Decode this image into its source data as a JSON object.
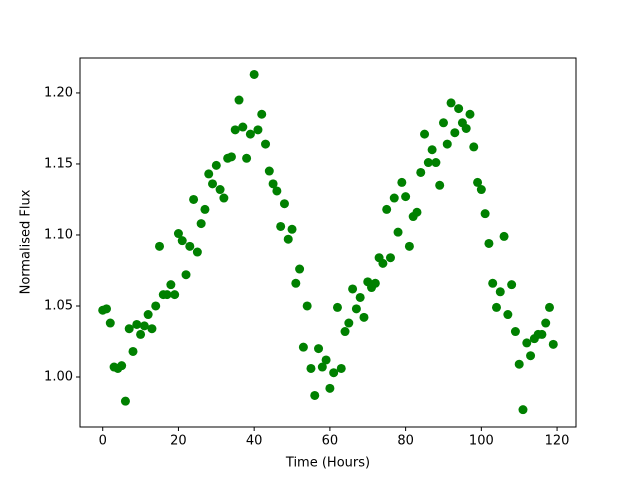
{
  "chart_data": {
    "type": "scatter",
    "x_label": "Time (Hours)",
    "y_label": "Normalised Flux",
    "x": [
      0,
      1,
      2,
      3,
      4,
      5,
      6,
      7,
      8,
      9,
      10,
      11,
      12,
      13,
      14,
      15,
      16,
      17,
      18,
      19,
      20,
      21,
      22,
      23,
      24,
      25,
      26,
      27,
      28,
      29,
      30,
      31,
      32,
      33,
      34,
      35,
      36,
      37,
      38,
      39,
      40,
      41,
      42,
      43,
      44,
      45,
      46,
      47,
      48,
      49,
      50,
      51,
      52,
      53,
      54,
      55,
      56,
      57,
      58,
      59,
      60,
      61,
      62,
      63,
      64,
      65,
      66,
      67,
      68,
      69,
      70,
      71,
      72,
      73,
      74,
      75,
      76,
      77,
      78,
      79,
      80,
      81,
      82,
      83,
      84,
      85,
      86,
      87,
      88,
      89,
      90,
      91,
      92,
      93,
      94,
      95,
      96,
      97,
      98,
      99,
      100,
      101,
      102,
      103,
      104,
      105,
      106,
      107,
      108,
      109,
      110,
      111,
      112,
      113,
      114,
      115,
      116,
      117,
      118,
      119
    ],
    "values": [
      1.047,
      1.048,
      1.038,
      1.007,
      1.006,
      1.008,
      0.983,
      1.034,
      1.018,
      1.037,
      1.03,
      1.036,
      1.044,
      1.034,
      1.05,
      1.092,
      1.058,
      1.058,
      1.065,
      1.058,
      1.101,
      1.096,
      1.072,
      1.092,
      1.125,
      1.088,
      1.108,
      1.118,
      1.143,
      1.136,
      1.149,
      1.132,
      1.126,
      1.154,
      1.155,
      1.174,
      1.195,
      1.176,
      1.154,
      1.171,
      1.213,
      1.174,
      1.185,
      1.164,
      1.145,
      1.136,
      1.131,
      1.106,
      1.122,
      1.097,
      1.104,
      1.066,
      1.076,
      1.021,
      1.05,
      1.006,
      0.987,
      1.02,
      1.007,
      1.012,
      0.992,
      1.003,
      1.049,
      1.006,
      1.032,
      1.038,
      1.062,
      1.048,
      1.056,
      1.042,
      1.067,
      1.063,
      1.066,
      1.084,
      1.08,
      1.118,
      1.084,
      1.126,
      1.102,
      1.137,
      1.127,
      1.092,
      1.113,
      1.116,
      1.144,
      1.171,
      1.151,
      1.16,
      1.151,
      1.135,
      1.179,
      1.164,
      1.193,
      1.172,
      1.189,
      1.179,
      1.175,
      1.185,
      1.162,
      1.137,
      1.132,
      1.115,
      1.094,
      1.066,
      1.049,
      1.06,
      1.099,
      1.044,
      1.065,
      1.032,
      1.009,
      0.977,
      1.024,
      1.015,
      1.027,
      1.03,
      1.03,
      1.038,
      1.049,
      1.023
    ],
    "color": "#008000",
    "xlim": [
      -6,
      125
    ],
    "ylim": [
      0.9648,
      1.2246
    ],
    "xticks": [
      0,
      20,
      40,
      60,
      80,
      100,
      120
    ],
    "yticks": [
      {
        "value": 1,
        "label": "1.00"
      },
      1.05,
      {
        "value": 1.1,
        "label": "1.10"
      },
      1.15,
      {
        "value": 1.2,
        "label": "1.20"
      }
    ]
  }
}
